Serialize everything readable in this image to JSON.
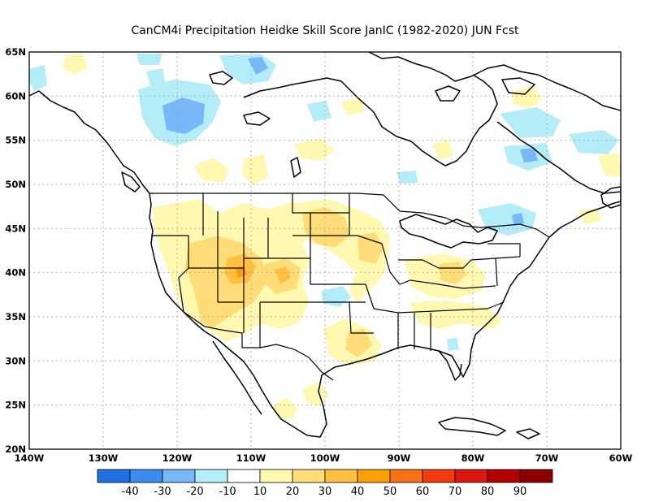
{
  "title": "CanCM4i  Precipitation Heidke Skill Score JanIC (1982-2020) JUN Fcst",
  "map": {
    "lon_range": [
      -140,
      -60
    ],
    "lat_range": [
      20,
      65
    ],
    "lat_labels": [
      "65N",
      "60N",
      "55N",
      "50N",
      "45N",
      "40N",
      "35N",
      "30N",
      "25N",
      "20N"
    ],
    "lon_labels": [
      "140W",
      "130W",
      "120W",
      "110W",
      "100W",
      "90W",
      "80W",
      "70W",
      "60W"
    ],
    "gridlines": "dotted"
  },
  "colorbar": {
    "labels": [
      "-40",
      "-30",
      "-20",
      "-10",
      "10",
      "20",
      "30",
      "40",
      "50",
      "60",
      "70",
      "80",
      "90"
    ],
    "colors": [
      "#2070e0",
      "#3c8cf0",
      "#78b8f8",
      "#b4ecf8",
      "#ffffff",
      "#fff8b0",
      "#fedc78",
      "#ffc040",
      "#fba000",
      "#f87018",
      "#f03c10",
      "#d81810",
      "#b00000",
      "#8c0000"
    ]
  }
}
